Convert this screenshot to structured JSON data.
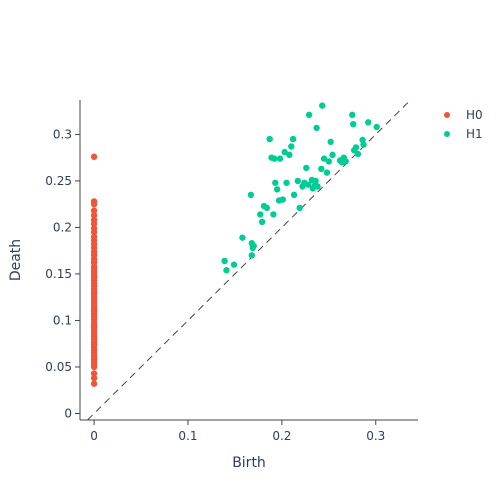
{
  "chart_data": {
    "type": "scatter",
    "xlabel": "Birth",
    "ylabel": "Death",
    "xlim": [
      -0.015,
      0.345
    ],
    "ylim": [
      -0.007,
      0.337
    ],
    "x_ticks": [
      0,
      0.1,
      0.2,
      0.3
    ],
    "x_tick_labels": [
      "0",
      "0.1",
      "0.2",
      "0.3"
    ],
    "y_ticks": [
      0,
      0.05,
      0.1,
      0.15,
      0.2,
      0.25,
      0.3
    ],
    "y_tick_labels": [
      "0",
      "0.05",
      "0.1",
      "0.15",
      "0.2",
      "0.25",
      "0.3"
    ],
    "grid": false,
    "diagonal": true,
    "legend_position": "top-right",
    "series": [
      {
        "name": "H0",
        "color": "#ef553b",
        "x": [
          0,
          0,
          0,
          0,
          0,
          0,
          0,
          0,
          0,
          0,
          0,
          0,
          0,
          0,
          0,
          0,
          0,
          0,
          0,
          0,
          0,
          0,
          0,
          0,
          0,
          0,
          0,
          0,
          0,
          0,
          0,
          0,
          0,
          0,
          0,
          0,
          0,
          0,
          0,
          0,
          0,
          0,
          0,
          0,
          0,
          0,
          0,
          0,
          0,
          0,
          0,
          0,
          0,
          0,
          0,
          0,
          0,
          0,
          0,
          0,
          0,
          0,
          0,
          0,
          0
        ],
        "y": [
          0.276,
          0.228,
          0.225,
          0.218,
          0.213,
          0.208,
          0.204,
          0.199,
          0.195,
          0.19,
          0.186,
          0.182,
          0.178,
          0.174,
          0.17,
          0.166,
          0.162,
          0.158,
          0.155,
          0.152,
          0.149,
          0.146,
          0.143,
          0.14,
          0.137,
          0.134,
          0.131,
          0.128,
          0.125,
          0.122,
          0.119,
          0.116,
          0.113,
          0.11,
          0.107,
          0.104,
          0.101,
          0.098,
          0.095,
          0.092,
          0.089,
          0.086,
          0.083,
          0.08,
          0.077,
          0.074,
          0.071,
          0.068,
          0.065,
          0.062,
          0.059,
          0.056,
          0.053,
          0.05,
          0.043,
          0.038,
          0.032,
          0.171,
          0.163,
          0.147,
          0.129,
          0.111,
          0.093,
          0.075,
          0.058
        ]
      },
      {
        "name": "H1",
        "color": "#00cc96",
        "x": [
          0.139,
          0.141,
          0.149,
          0.158,
          0.167,
          0.168,
          0.169,
          0.168,
          0.17,
          0.177,
          0.179,
          0.181,
          0.184,
          0.187,
          0.189,
          0.191,
          0.193,
          0.192,
          0.195,
          0.197,
          0.198,
          0.201,
          0.203,
          0.205,
          0.208,
          0.21,
          0.212,
          0.213,
          0.217,
          0.219,
          0.222,
          0.224,
          0.226,
          0.228,
          0.229,
          0.232,
          0.233,
          0.235,
          0.236,
          0.237,
          0.238,
          0.242,
          0.243,
          0.245,
          0.248,
          0.25,
          0.252,
          0.254,
          0.262,
          0.264,
          0.266,
          0.268,
          0.275,
          0.276,
          0.277,
          0.279,
          0.281,
          0.286,
          0.287,
          0.292,
          0.301
        ],
        "y": [
          0.164,
          0.154,
          0.16,
          0.189,
          0.235,
          0.17,
          0.178,
          0.183,
          0.18,
          0.214,
          0.206,
          0.223,
          0.221,
          0.295,
          0.275,
          0.214,
          0.248,
          0.274,
          0.241,
          0.229,
          0.274,
          0.23,
          0.281,
          0.248,
          0.278,
          0.287,
          0.295,
          0.235,
          0.25,
          0.221,
          0.244,
          0.248,
          0.264,
          0.246,
          0.321,
          0.251,
          0.242,
          0.245,
          0.25,
          0.307,
          0.244,
          0.263,
          0.331,
          0.274,
          0.259,
          0.271,
          0.292,
          0.278,
          0.272,
          0.27,
          0.275,
          0.271,
          0.321,
          0.311,
          0.283,
          0.286,
          0.279,
          0.294,
          0.289,
          0.313,
          0.308
        ]
      }
    ]
  }
}
